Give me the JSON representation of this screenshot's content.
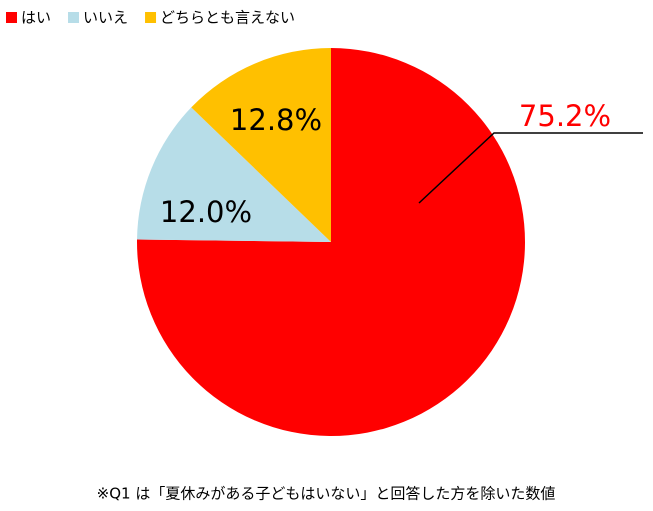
{
  "chart_data": {
    "type": "pie",
    "categories": [
      "はい",
      "いいえ",
      "どちらとも言えない"
    ],
    "values": [
      75.2,
      12.0,
      12.8
    ],
    "value_labels": [
      "75.2%",
      "12.0%",
      "12.8%"
    ],
    "colors": [
      "#ff0000",
      "#b7dde8",
      "#ffc000"
    ],
    "note": "※Q1 は「夏休みがある子どもはいない」と回答した方を除いた数値"
  }
}
